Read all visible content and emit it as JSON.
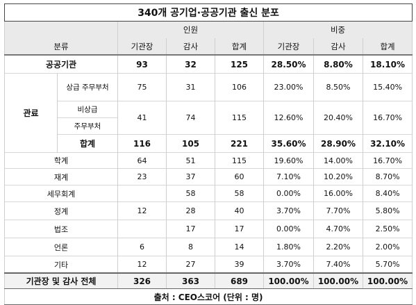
{
  "title": "340개 공기업·공공기관 출신 분포",
  "header": {
    "classification": "분류",
    "group_staff": "인원",
    "group_ratio": "비중",
    "sub": [
      "기관장",
      "감사",
      "합계",
      "기관장",
      "감사",
      "합계"
    ]
  },
  "rows": {
    "public": {
      "label": "공공기관",
      "values": [
        "93",
        "32",
        "125",
        "28.50%",
        "8.80%",
        "18.10%"
      ]
    },
    "bureaucrat": {
      "label": "관료",
      "upper": {
        "label": "상급 주무부처",
        "values": [
          "75",
          "31",
          "106",
          "23.00%",
          "8.50%",
          "15.40%"
        ]
      },
      "nonupper": {
        "label_line1": "비상급",
        "label_line2": "주무부처",
        "values": [
          "41",
          "74",
          "115",
          "12.60%",
          "20.40%",
          "16.70%"
        ]
      },
      "subtotal": {
        "label": "합계",
        "values": [
          "116",
          "105",
          "221",
          "35.60%",
          "28.90%",
          "32.10%"
        ]
      }
    },
    "others": [
      {
        "label": "학계",
        "values": [
          "64",
          "51",
          "115",
          "19.60%",
          "14.00%",
          "16.70%"
        ]
      },
      {
        "label": "재계",
        "values": [
          "23",
          "37",
          "60",
          "7.10%",
          "10.20%",
          "8.70%"
        ]
      },
      {
        "label": "세무회계",
        "values": [
          "",
          "58",
          "58",
          "0.00%",
          "16.00%",
          "8.40%"
        ]
      },
      {
        "label": "정계",
        "values": [
          "12",
          "28",
          "40",
          "3.70%",
          "7.70%",
          "5.80%"
        ]
      },
      {
        "label": "법조",
        "values": [
          "",
          "17",
          "17",
          "0.00%",
          "4.70%",
          "2.50%"
        ]
      },
      {
        "label": "언론",
        "values": [
          "6",
          "8",
          "14",
          "1.80%",
          "2.20%",
          "2.00%"
        ]
      },
      {
        "label": "기타",
        "values": [
          "12",
          "27",
          "39",
          "3.70%",
          "7.40%",
          "5.70%"
        ]
      }
    ],
    "total": {
      "label": "기관장 및 감사 전체",
      "values": [
        "326",
        "363",
        "689",
        "100.00%",
        "100.00%",
        "100.00%"
      ]
    }
  },
  "source": "출처 : CEO스코어 (단위 : 명)"
}
